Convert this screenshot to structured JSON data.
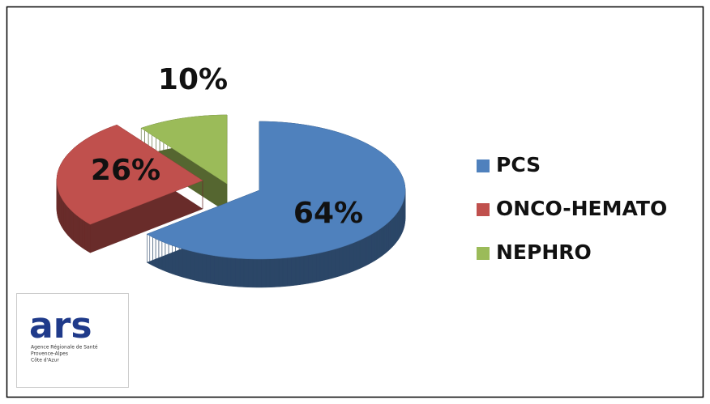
{
  "chart_data": {
    "type": "pie3d",
    "categories": [
      "PCS",
      "ONCO-HEMATO",
      "NEPHRO"
    ],
    "values": [
      64,
      26,
      10
    ],
    "value_labels": [
      "64%",
      "26%",
      "10%"
    ],
    "colors": [
      "#4f81bd",
      "#c0504d",
      "#9bbb59"
    ],
    "legend": "right"
  },
  "logo": {
    "name": "ars",
    "lines": [
      "Agence Régionale de Santé",
      "Provence-Alpes",
      "Côte d'Azur"
    ]
  }
}
